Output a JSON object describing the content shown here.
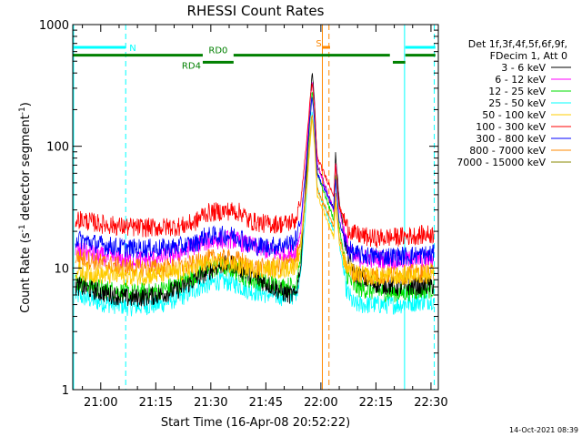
{
  "chart_data": {
    "type": "line",
    "title": "RHESSI Count Rates",
    "xlabel": "Start Time (16-Apr-08 20:52:22)",
    "ylabel_main": "Count Rate (s",
    "ylabel_sup1": "-1",
    "ylabel_mid": " detector segment",
    "ylabel_sup2": "-1",
    "ylabel_end": ")",
    "x_start_minutes": 1252.37,
    "xlim": [
      1252.37,
      1352.0
    ],
    "ylim": [
      1,
      1000
    ],
    "y_scale": "log",
    "x_ticks": [
      {
        "v": 1260,
        "label": "21:00"
      },
      {
        "v": 1275,
        "label": "21:15"
      },
      {
        "v": 1290,
        "label": "21:30"
      },
      {
        "v": 1305,
        "label": "21:45"
      },
      {
        "v": 1320,
        "label": "22:00"
      },
      {
        "v": 1335,
        "label": "22:15"
      },
      {
        "v": 1350,
        "label": "22:30"
      }
    ],
    "y_ticks": [
      {
        "v": 1,
        "label": "1"
      },
      {
        "v": 10,
        "label": "10"
      },
      {
        "v": 100,
        "label": "100"
      },
      {
        "v": 1000,
        "label": "1000"
      }
    ],
    "legend_header": [
      "Det 1f,3f,4f,5f,6f,9f,",
      "FDecim 1, Att 0"
    ],
    "legend_position": "right",
    "series": [
      {
        "name": "3 - 6 keV",
        "color": "#000000",
        "points": [
          [
            1253,
            7.2
          ],
          [
            1260,
            6.3
          ],
          [
            1268,
            5.6
          ],
          [
            1276,
            6.0
          ],
          [
            1282,
            6.8
          ],
          [
            1287,
            8.5
          ],
          [
            1292,
            10.5
          ],
          [
            1296,
            10.8
          ],
          [
            1300,
            9.0
          ],
          [
            1305,
            7.5
          ],
          [
            1310,
            6.2
          ],
          [
            1313,
            5.9
          ],
          [
            1314.5,
            10
          ],
          [
            1316,
            60
          ],
          [
            1317,
            200
          ],
          [
            1317.6,
            420
          ],
          [
            1318.2,
            250
          ],
          [
            1319,
            70
          ],
          [
            1323.5,
            30
          ],
          [
            1324,
            88
          ],
          [
            1325,
            35
          ],
          [
            1327,
            14
          ],
          [
            1329,
            9
          ],
          [
            1334,
            7.5
          ],
          [
            1341,
            7.0
          ],
          [
            1351,
            7.2
          ]
        ]
      },
      {
        "name": "6 - 12 keV",
        "color": "#ff00ff",
        "points": [
          [
            1253,
            14.0
          ],
          [
            1260,
            12.5
          ],
          [
            1268,
            11.5
          ],
          [
            1276,
            12.0
          ],
          [
            1282,
            13.5
          ],
          [
            1287,
            16.0
          ],
          [
            1292,
            17.0
          ],
          [
            1296,
            17.2
          ],
          [
            1300,
            15.5
          ],
          [
            1305,
            14.0
          ],
          [
            1310,
            13.0
          ],
          [
            1313,
            13.5
          ],
          [
            1314.5,
            20
          ],
          [
            1316,
            80
          ],
          [
            1317,
            220
          ],
          [
            1317.6,
            340
          ],
          [
            1318.2,
            230
          ],
          [
            1319,
            70
          ],
          [
            1323.5,
            30
          ],
          [
            1324,
            75
          ],
          [
            1325,
            30
          ],
          [
            1327,
            16
          ],
          [
            1329,
            12
          ],
          [
            1334,
            12.0
          ],
          [
            1341,
            11.5
          ],
          [
            1351,
            12.0
          ]
        ]
      },
      {
        "name": "12 - 25 keV",
        "color": "#00dd00",
        "points": [
          [
            1253,
            7.8
          ],
          [
            1260,
            6.8
          ],
          [
            1268,
            6.2
          ],
          [
            1276,
            6.5
          ],
          [
            1282,
            7.5
          ],
          [
            1287,
            9.2
          ],
          [
            1292,
            10.2
          ],
          [
            1296,
            9.8
          ],
          [
            1300,
            8.2
          ],
          [
            1305,
            7.5
          ],
          [
            1310,
            7.0
          ],
          [
            1313,
            7.2
          ],
          [
            1314.5,
            12
          ],
          [
            1316,
            50
          ],
          [
            1317,
            160
          ],
          [
            1317.6,
            280
          ],
          [
            1318.2,
            180
          ],
          [
            1319,
            60
          ],
          [
            1323.5,
            25
          ],
          [
            1324,
            60
          ],
          [
            1325,
            22
          ],
          [
            1327,
            9
          ],
          [
            1329,
            7.0
          ],
          [
            1334,
            6.5
          ],
          [
            1341,
            6.2
          ],
          [
            1351,
            6.8
          ]
        ]
      },
      {
        "name": "25 - 50 keV",
        "color": "#00ffff",
        "points": [
          [
            1253,
            6.0
          ],
          [
            1260,
            5.2
          ],
          [
            1268,
            4.8
          ],
          [
            1276,
            5.0
          ],
          [
            1282,
            5.8
          ],
          [
            1287,
            7.0
          ],
          [
            1292,
            7.8
          ],
          [
            1296,
            7.6
          ],
          [
            1300,
            6.6
          ],
          [
            1305,
            6.1
          ],
          [
            1310,
            5.8
          ],
          [
            1313,
            6.0
          ],
          [
            1314.5,
            9
          ],
          [
            1316,
            35
          ],
          [
            1317,
            110
          ],
          [
            1317.6,
            200
          ],
          [
            1318.2,
            130
          ],
          [
            1319,
            45
          ],
          [
            1323.5,
            20
          ],
          [
            1324,
            40
          ],
          [
            1325,
            16
          ],
          [
            1327,
            6.5
          ],
          [
            1329,
            5.0
          ],
          [
            1334,
            5.0
          ],
          [
            1341,
            5.0
          ],
          [
            1351,
            5.5
          ]
        ]
      },
      {
        "name": "50 - 100 keV",
        "color": "#ffcc00",
        "points": [
          [
            1253,
            9.5
          ],
          [
            1260,
            8.8
          ],
          [
            1268,
            8.5
          ],
          [
            1276,
            8.8
          ],
          [
            1282,
            9.2
          ],
          [
            1287,
            10.5
          ],
          [
            1292,
            11.0
          ],
          [
            1296,
            10.5
          ],
          [
            1300,
            10.0
          ],
          [
            1305,
            9.8
          ],
          [
            1310,
            9.8
          ],
          [
            1313,
            10.5
          ],
          [
            1314.5,
            14
          ],
          [
            1316,
            40
          ],
          [
            1317,
            100
          ],
          [
            1317.6,
            170
          ],
          [
            1318.2,
            110
          ],
          [
            1319,
            40
          ],
          [
            1323.5,
            18
          ],
          [
            1324,
            35
          ],
          [
            1325,
            16
          ],
          [
            1327,
            10
          ],
          [
            1329,
            9.0
          ],
          [
            1334,
            8.5
          ],
          [
            1341,
            8.5
          ],
          [
            1351,
            9.0
          ]
        ]
      },
      {
        "name": "100 - 300 keV",
        "color": "#ff0000",
        "points": [
          [
            1253,
            25.5
          ],
          [
            1260,
            23.0
          ],
          [
            1268,
            21.5
          ],
          [
            1276,
            21.5
          ],
          [
            1282,
            22.0
          ],
          [
            1286,
            24.0
          ],
          [
            1288,
            28.0
          ],
          [
            1292,
            29.0
          ],
          [
            1296,
            29.5
          ],
          [
            1299,
            28.0
          ],
          [
            1300,
            24.5
          ],
          [
            1305,
            23.0
          ],
          [
            1310,
            23.0
          ],
          [
            1313,
            24.5
          ],
          [
            1314.5,
            35
          ],
          [
            1316,
            100
          ],
          [
            1317,
            230
          ],
          [
            1317.6,
            330
          ],
          [
            1318.2,
            220
          ],
          [
            1319,
            80
          ],
          [
            1323.5,
            40
          ],
          [
            1324,
            70
          ],
          [
            1325,
            32
          ],
          [
            1327,
            22
          ],
          [
            1329,
            19
          ],
          [
            1334,
            17.5
          ],
          [
            1341,
            18.0
          ],
          [
            1351,
            19.0
          ]
        ]
      },
      {
        "name": "300 - 800 keV",
        "color": "#0000ff",
        "points": [
          [
            1253,
            17.5
          ],
          [
            1260,
            15.5
          ],
          [
            1268,
            14.5
          ],
          [
            1276,
            14.5
          ],
          [
            1282,
            15.0
          ],
          [
            1286,
            16.0
          ],
          [
            1288,
            18.0
          ],
          [
            1292,
            18.5
          ],
          [
            1296,
            18.5
          ],
          [
            1299,
            17.5
          ],
          [
            1300,
            15.5
          ],
          [
            1305,
            15.0
          ],
          [
            1310,
            15.5
          ],
          [
            1313,
            16.5
          ],
          [
            1314.5,
            24
          ],
          [
            1316,
            70
          ],
          [
            1317,
            170
          ],
          [
            1317.6,
            260
          ],
          [
            1318.2,
            170
          ],
          [
            1319,
            60
          ],
          [
            1323.5,
            30
          ],
          [
            1324,
            55
          ],
          [
            1325,
            24
          ],
          [
            1327,
            15
          ],
          [
            1329,
            13
          ],
          [
            1334,
            12.5
          ],
          [
            1341,
            12.5
          ],
          [
            1351,
            13.0
          ]
        ]
      },
      {
        "name": "800 - 7000 keV",
        "color": "#ff8800",
        "points": [
          [
            1253,
            12.5
          ],
          [
            1260,
            11.0
          ],
          [
            1268,
            10.0
          ],
          [
            1276,
            10.0
          ],
          [
            1282,
            10.2
          ],
          [
            1286,
            10.8
          ],
          [
            1288,
            11.8
          ],
          [
            1292,
            12.0
          ],
          [
            1296,
            11.8
          ],
          [
            1299,
            11.3
          ],
          [
            1300,
            10.2
          ],
          [
            1305,
            10.0
          ],
          [
            1310,
            10.5
          ],
          [
            1313,
            11.5
          ],
          [
            1314.5,
            16
          ],
          [
            1316,
            45
          ],
          [
            1317,
            120
          ],
          [
            1317.6,
            190
          ],
          [
            1318.2,
            120
          ],
          [
            1319,
            45
          ],
          [
            1323.5,
            22
          ],
          [
            1324,
            40
          ],
          [
            1325,
            18
          ],
          [
            1327,
            10
          ],
          [
            1329,
            9.0
          ],
          [
            1334,
            8.7
          ],
          [
            1341,
            8.8
          ],
          [
            1351,
            9.2
          ]
        ]
      },
      {
        "name": "7000 - 15000 keV",
        "color": "#888800",
        "points": []
      }
    ],
    "annotations": [
      {
        "label": "N",
        "color": "#00ffff",
        "y": 650,
        "segments": [
          [
            1252.5,
            1266.8
          ],
          [
            1343,
            1351.2
          ]
        ]
      },
      {
        "label": "S",
        "color": "#ff8800",
        "y": 650,
        "segments": [
          [
            1320.5,
            1322.5
          ]
        ]
      },
      {
        "label": "RD0",
        "color": "#008000",
        "y": 560,
        "segments": [
          [
            1252.5,
            1287.8
          ],
          [
            1296.2,
            1338.8
          ],
          [
            1343,
            1351.2
          ]
        ]
      },
      {
        "label": "RD4",
        "color": "#008000",
        "y": 490,
        "segments": [
          [
            1287.8,
            1296.2
          ],
          [
            1339.6,
            1343
          ]
        ]
      }
    ],
    "vlines": [
      {
        "x": 1252.6,
        "color": "#00ffff",
        "style": "solid"
      },
      {
        "x": 1266.8,
        "color": "#00ffff",
        "style": "dashed"
      },
      {
        "x": 1342.8,
        "color": "#00ffff",
        "style": "solid"
      },
      {
        "x": 1350.9,
        "color": "#00ffff",
        "style": "dashed"
      },
      {
        "x": 1320.4,
        "color": "#ff8800",
        "style": "solid"
      },
      {
        "x": 1322.2,
        "color": "#ff8800",
        "style": "dashed"
      }
    ]
  },
  "timestamp": "14-Oct-2021 08:39"
}
